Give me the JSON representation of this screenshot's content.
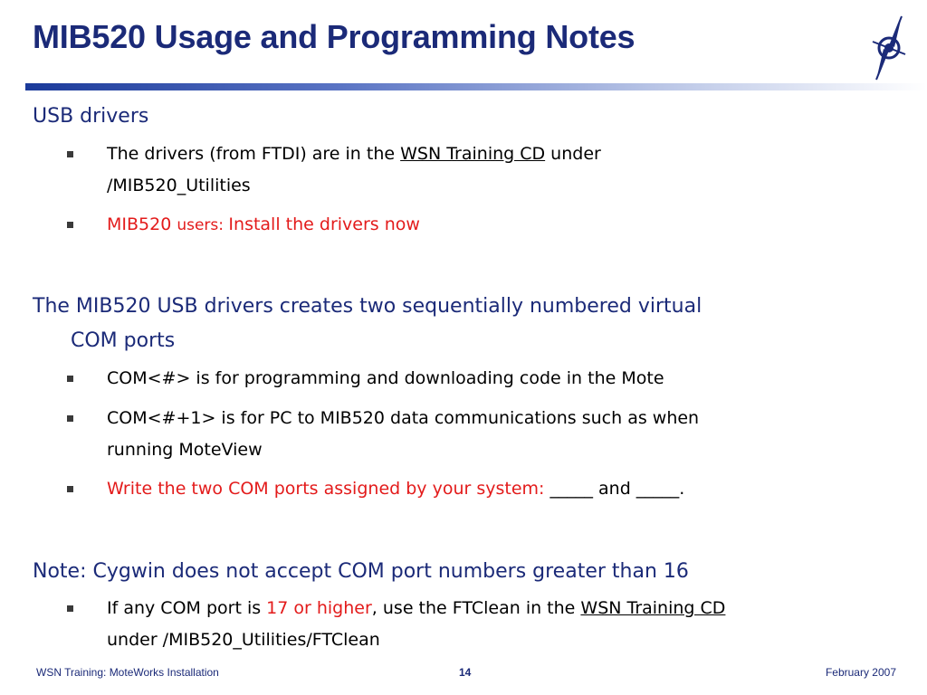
{
  "slide": {
    "title": "MIB520 Usage and Programming Notes"
  },
  "sections": {
    "usb": {
      "heading": "USB drivers",
      "b1_pre": "The drivers (from FTDI) are in the ",
      "b1_link": "WSN Training CD",
      "b1_post": " under",
      "b1_line2": "/MIB520_Utilities",
      "b2_pre": "MIB520 ",
      "b2_mid": "users: ",
      "b2_post": "Install the drivers now"
    },
    "com": {
      "heading_line1": "The MIB520 USB drivers creates two sequentially numbered virtual",
      "heading_line2": "COM ports",
      "b1": "COM<#> is for programming and downloading code in the Mote",
      "b2_line1": "COM<#+1> is for PC to MIB520 data communications such as when",
      "b2_line2": "running MoteView",
      "b3_red": "Write the two COM ports assigned by your system: ",
      "b3_blank1": "_____",
      "b3_and": " and ",
      "b3_blank2": "_____",
      "b3_end": "."
    },
    "note": {
      "heading": "Note: Cygwin does not accept COM port numbers greater than 16",
      "b1_pre": "If any COM port is ",
      "b1_red": "17 or higher",
      "b1_mid": ", use the FTClean in the ",
      "b1_link": "WSN Training CD",
      "b1_line2": "under /MIB520_Utilities/FTClean"
    }
  },
  "footer": {
    "left": "WSN Training: MoteWorks Installation",
    "page": "14",
    "date": "February 2007"
  },
  "colors": {
    "title": "#1b2a78",
    "accent_red": "#e31b1b"
  },
  "icons": {
    "logo": "compass-star-logo-icon",
    "bullet": "square-bullet-icon"
  }
}
